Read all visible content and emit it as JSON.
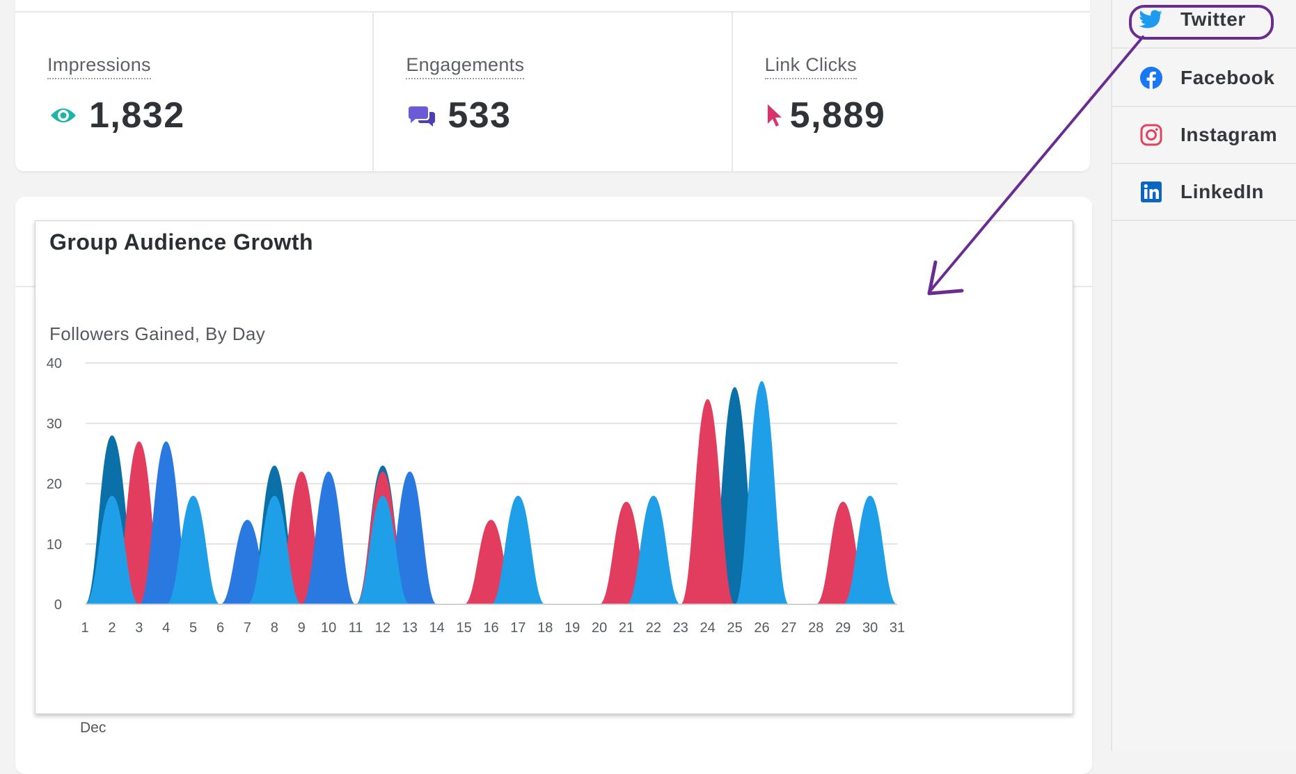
{
  "stats": [
    {
      "label": "Impressions",
      "value": "1,832",
      "icon": "eye-icon",
      "color": "#1fb5a6"
    },
    {
      "label": "Engagements",
      "value": "533",
      "icon": "chat-bubbles-icon",
      "color": "#6b5bd6"
    },
    {
      "label": "Link Clicks",
      "value": "5,889",
      "icon": "cursor-pointer-icon",
      "color": "#d8336b"
    }
  ],
  "chart_card": {
    "title": "Group Audience Growth",
    "subtitle": "Followers Gained, By Day",
    "month_label": "Dec"
  },
  "chart_data": {
    "type": "area",
    "title": "Group Audience Growth",
    "subtitle": "Followers Gained, By Day",
    "xlabel": "",
    "ylabel": "",
    "x": [
      1,
      2,
      3,
      4,
      5,
      6,
      7,
      8,
      9,
      10,
      11,
      12,
      13,
      14,
      15,
      16,
      17,
      18,
      19,
      20,
      21,
      22,
      23,
      24,
      25,
      26,
      27,
      28,
      29,
      30,
      31
    ],
    "ylim": [
      0,
      40
    ],
    "yticks": [
      0,
      10,
      20,
      30,
      40
    ],
    "grid": true,
    "series": [
      {
        "color": "#0b6fa8",
        "values": [
          0,
          28,
          4,
          0,
          0,
          0,
          0,
          23,
          0,
          0,
          0,
          23,
          0,
          0,
          0,
          0,
          0,
          0,
          0,
          0,
          0,
          0,
          0,
          0,
          36,
          0,
          0,
          0,
          17,
          0,
          0
        ]
      },
      {
        "color": "#e23c5e",
        "values": [
          0,
          0,
          27,
          0,
          0,
          0,
          0,
          0,
          22,
          0,
          0,
          22,
          0,
          0,
          0,
          14,
          0,
          0,
          0,
          0,
          17,
          0,
          0,
          34,
          0,
          0,
          0,
          0,
          17,
          0,
          0
        ]
      },
      {
        "color": "#2979e0",
        "values": [
          0,
          0,
          0,
          27,
          0,
          0,
          14,
          0,
          0,
          22,
          0,
          0,
          22,
          0,
          0,
          0,
          0,
          0,
          0,
          0,
          0,
          17,
          0,
          0,
          0,
          36,
          0,
          0,
          0,
          17,
          0
        ]
      },
      {
        "color": "#1f9fe8",
        "values": [
          0,
          18,
          0,
          0,
          18,
          0,
          0,
          18,
          0,
          0,
          0,
          18,
          0,
          0,
          0,
          0,
          18,
          0,
          0,
          0,
          0,
          18,
          0,
          0,
          0,
          37,
          0,
          0,
          0,
          18,
          0
        ]
      }
    ]
  },
  "sidebar": {
    "items": [
      {
        "label": "Twitter",
        "icon": "twitter-bird-icon",
        "color": "#1d9bf0"
      },
      {
        "label": "Facebook",
        "icon": "facebook-icon",
        "color": "#1877f2"
      },
      {
        "label": "Instagram",
        "icon": "instagram-icon",
        "color": "#e4405f"
      },
      {
        "label": "LinkedIn",
        "icon": "linkedin-icon",
        "color": "#0a66c2"
      }
    ]
  },
  "annotation": {
    "color": "#6a2c91"
  }
}
